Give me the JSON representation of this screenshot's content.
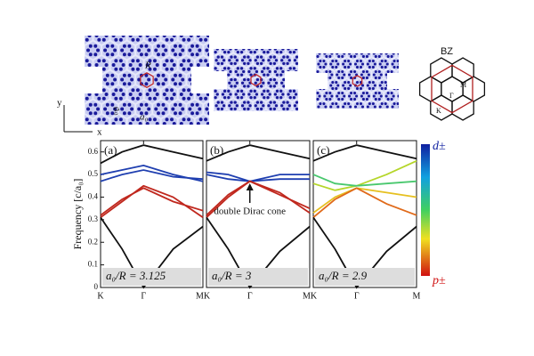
{
  "schematic": {
    "labels": {
      "R": "R",
      "a0": "a₀",
      "a0_tilted": "a₀",
      "y": "y",
      "x": "x",
      "bz": "BZ",
      "m": "M",
      "gamma": "Γ",
      "k": "K"
    }
  },
  "colorbar": {
    "top_label": "d±",
    "bottom_label": "p±"
  },
  "chart_data": [
    {
      "type": "line",
      "panel_label": "(a)",
      "annotation": "a₀/R = 3.125",
      "ylabel": "Frequency [c/a₀]",
      "x": [
        0,
        0.21,
        0.42,
        0.71,
        1
      ],
      "xlim": [
        0,
        1
      ],
      "ylim": [
        0,
        0.65
      ],
      "xticks": [
        {
          "value": 0,
          "label": "K"
        },
        {
          "value": 0.42,
          "label": "Γ"
        },
        {
          "value": 1,
          "label": "MK"
        }
      ],
      "yticks": [
        0,
        0.1,
        0.2,
        0.3,
        0.4,
        0.5,
        0.6
      ],
      "series": [
        {
          "color": "#111111",
          "values": [
            0.55,
            0.6,
            0.63,
            0.6,
            0.57
          ]
        },
        {
          "color": "#1f3fb0",
          "values": [
            0.5,
            0.52,
            0.54,
            0.5,
            0.47
          ]
        },
        {
          "color": "#1f3fb0",
          "values": [
            0.47,
            0.5,
            0.52,
            0.49,
            0.48
          ]
        },
        {
          "color": "#c0281e",
          "values": [
            0.31,
            0.38,
            0.45,
            0.4,
            0.31
          ]
        },
        {
          "color": "#c0281e",
          "values": [
            0.32,
            0.39,
            0.44,
            0.38,
            0.34
          ]
        },
        {
          "color": "#111111",
          "values": [
            0.31,
            0.17,
            0,
            0.17,
            0.27
          ]
        }
      ]
    },
    {
      "type": "line",
      "panel_label": "(b)",
      "annotation": "a₀/R = 3",
      "note": "double Dirac cone",
      "x": [
        0,
        0.21,
        0.42,
        0.71,
        1
      ],
      "xlim": [
        0,
        1
      ],
      "ylim": [
        0,
        0.65
      ],
      "xticks": [
        {
          "value": 0.42,
          "label": "Γ"
        },
        {
          "value": 1,
          "label": "MK"
        }
      ],
      "series": [
        {
          "color": "#111111",
          "values": [
            0.56,
            0.6,
            0.63,
            0.6,
            0.57
          ]
        },
        {
          "color": "#1f3fb0",
          "values": [
            0.5,
            0.48,
            0.47,
            0.48,
            0.48
          ]
        },
        {
          "color": "#1f3fb0",
          "values": [
            0.51,
            0.5,
            0.47,
            0.5,
            0.5
          ]
        },
        {
          "color": "#c0281e",
          "values": [
            0.31,
            0.4,
            0.47,
            0.42,
            0.33
          ]
        },
        {
          "color": "#c0281e",
          "values": [
            0.32,
            0.41,
            0.47,
            0.41,
            0.35
          ]
        },
        {
          "color": "#111111",
          "values": [
            0.31,
            0.17,
            0,
            0.16,
            0.27
          ]
        }
      ]
    },
    {
      "type": "line",
      "panel_label": "(c)",
      "annotation": "a₀/R = 2.9",
      "x": [
        0,
        0.21,
        0.42,
        0.71,
        1
      ],
      "xlim": [
        0,
        1
      ],
      "ylim": [
        0,
        0.65
      ],
      "xticks": [
        {
          "value": 0.42,
          "label": "Γ"
        },
        {
          "value": 1,
          "label": "M"
        }
      ],
      "series": [
        {
          "color": "#111111",
          "values": [
            0.56,
            0.6,
            0.63,
            0.6,
            0.57
          ]
        },
        {
          "color": "#b5d62a",
          "values": [
            0.46,
            0.43,
            0.45,
            0.5,
            0.56
          ]
        },
        {
          "color": "#49c86e",
          "values": [
            0.5,
            0.46,
            0.45,
            0.46,
            0.47
          ]
        },
        {
          "color": "#e6c020",
          "values": [
            0.33,
            0.4,
            0.44,
            0.42,
            0.4
          ]
        },
        {
          "color": "#e06a1a",
          "values": [
            0.31,
            0.39,
            0.44,
            0.37,
            0.32
          ]
        },
        {
          "color": "#111111",
          "values": [
            0.31,
            0.17,
            0,
            0.16,
            0.27
          ]
        }
      ]
    }
  ]
}
